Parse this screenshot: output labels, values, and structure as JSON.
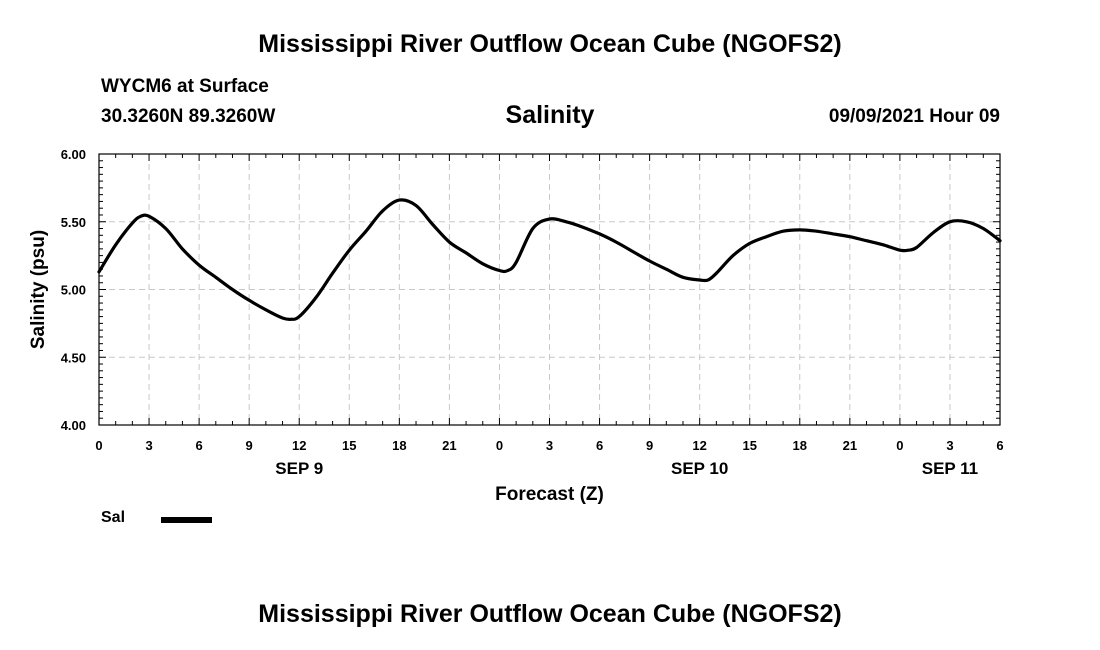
{
  "header": {
    "title": "Mississippi River Outflow Ocean Cube (NGOFS2)",
    "station": "WYCM6 at Surface",
    "coordinates": "30.3260N  89.3260W",
    "datetime": "09/09/2021 Hour 09"
  },
  "footer": {
    "title": "Mississippi River Outflow Ocean Cube (NGOFS2)"
  },
  "chart_data": {
    "type": "line",
    "title": "Salinity",
    "xlabel": "Forecast (Z)",
    "ylabel": "Salinity (psu)",
    "xlim": [
      0,
      54
    ],
    "ylim": [
      4.0,
      6.0
    ],
    "grid": true,
    "x_ticks": [
      0,
      3,
      6,
      9,
      12,
      15,
      18,
      21,
      24,
      27,
      30,
      33,
      36,
      39,
      42,
      45,
      48,
      51,
      54
    ],
    "x_tick_labels": [
      "0",
      "3",
      "6",
      "9",
      "12",
      "15",
      "18",
      "21",
      "0",
      "3",
      "6",
      "9",
      "12",
      "15",
      "18",
      "21",
      "0",
      "3",
      "6"
    ],
    "y_ticks": [
      4.0,
      4.5,
      5.0,
      5.5,
      6.0
    ],
    "y_tick_labels": [
      "4.00",
      "4.50",
      "5.00",
      "5.50",
      "6.00"
    ],
    "date_labels": [
      {
        "x": 12,
        "label": "SEP 9"
      },
      {
        "x": 36,
        "label": "SEP 10"
      },
      {
        "x": 51,
        "label": "SEP 11"
      }
    ],
    "legend": {
      "position": "bottom-left",
      "entries": [
        {
          "label": "Sal",
          "color": "#000000"
        }
      ]
    },
    "series": [
      {
        "name": "Sal",
        "color": "#000000",
        "x": [
          0,
          1,
          2,
          2.5,
          3,
          4,
          5,
          6,
          7,
          8,
          9,
          10,
          11,
          11.5,
          12,
          13,
          14,
          15,
          16,
          17,
          18,
          19,
          20,
          21,
          22,
          23,
          24,
          24.5,
          25,
          26,
          27,
          28,
          29,
          30,
          31,
          32,
          33,
          34,
          35,
          36,
          36.5,
          37,
          38,
          39,
          40,
          41,
          42,
          43,
          44,
          45,
          46,
          47,
          48,
          48.5,
          49,
          50,
          51,
          52,
          53,
          54
        ],
        "values": [
          5.13,
          5.33,
          5.49,
          5.54,
          5.54,
          5.45,
          5.3,
          5.18,
          5.09,
          5.0,
          4.92,
          4.85,
          4.79,
          4.78,
          4.8,
          4.94,
          5.12,
          5.29,
          5.43,
          5.58,
          5.66,
          5.62,
          5.48,
          5.35,
          5.27,
          5.19,
          5.14,
          5.14,
          5.2,
          5.45,
          5.52,
          5.5,
          5.46,
          5.41,
          5.35,
          5.28,
          5.21,
          5.15,
          5.09,
          5.07,
          5.07,
          5.12,
          5.25,
          5.34,
          5.39,
          5.43,
          5.44,
          5.43,
          5.41,
          5.39,
          5.36,
          5.33,
          5.29,
          5.29,
          5.31,
          5.42,
          5.5,
          5.5,
          5.45,
          5.36
        ]
      }
    ]
  }
}
